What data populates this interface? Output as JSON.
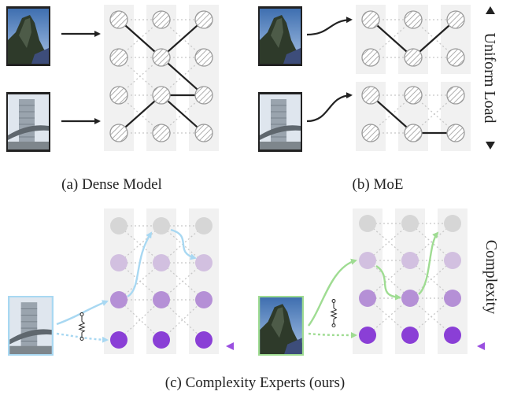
{
  "panels": {
    "dense": {
      "caption": "(a) Dense Model"
    },
    "moe": {
      "caption": "(b) MoE",
      "side_label": "Uniform Load"
    },
    "complexity": {
      "caption": "(c) Complexity Experts (ours)",
      "side_label": "Complexity"
    }
  },
  "colors": {
    "column_bg": "#f1f1f1",
    "hatched_node": "#9a9a9a",
    "route_line": "#222222",
    "dotted_link": "#c8c8c8",
    "blue_route": "#a8d8f2",
    "green_route": "#9fdc92",
    "level_colors": [
      "#d6d6d6",
      "#d2c0e0",
      "#b590d6",
      "#8a3fd6"
    ],
    "gradient_top": "#e0e0e0",
    "gradient_bottom": "#9a4fe0"
  },
  "icons": [
    "building-image-icon",
    "rock-formation-image-icon",
    "arrow-up-icon",
    "arrow-down-icon",
    "resistor-switch-icon"
  ]
}
